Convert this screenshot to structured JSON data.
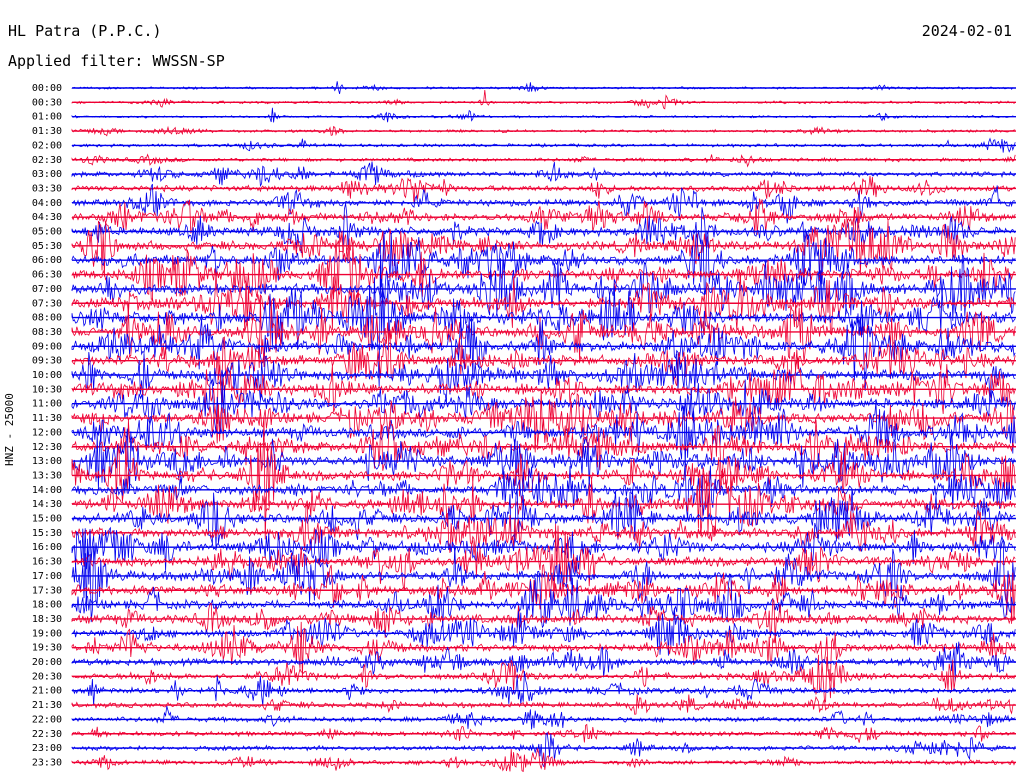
{
  "header": {
    "station": "HL Patra (P.P.C.)",
    "filter": "Applied filter: WWSSN-SP",
    "date": "2024-02-01"
  },
  "chart_data": {
    "type": "line",
    "ylabel": "HNZ - 25000",
    "row_labels": [
      "00:00",
      "00:30",
      "01:00",
      "01:30",
      "02:00",
      "02:30",
      "03:00",
      "03:30",
      "04:00",
      "04:30",
      "05:00",
      "05:30",
      "06:00",
      "06:30",
      "07:00",
      "07:30",
      "08:00",
      "08:30",
      "09:00",
      "09:30",
      "10:00",
      "10:30",
      "11:00",
      "11:30",
      "12:00",
      "12:30",
      "13:00",
      "13:30",
      "14:00",
      "14:30",
      "15:00",
      "15:30",
      "16:00",
      "16:30",
      "17:00",
      "17:30",
      "18:00",
      "18:30",
      "19:00",
      "19:30",
      "20:00",
      "20:30",
      "21:00",
      "21:30",
      "22:00",
      "22:30",
      "23:00",
      "23:30"
    ],
    "trace_colors": [
      "#0000ee",
      "#ee0033"
    ],
    "row_activity": [
      0.4,
      0.5,
      0.4,
      0.6,
      0.8,
      1.0,
      1.6,
      2.0,
      2.3,
      2.6,
      3.2,
      3.6,
      3.8,
      4.0,
      4.1,
      4.2,
      4.3,
      4.2,
      4.1,
      4.0,
      4.0,
      4.1,
      4.0,
      4.0,
      3.9,
      4.0,
      4.0,
      3.9,
      3.8,
      3.8,
      3.8,
      3.7,
      3.6,
      3.6,
      3.6,
      3.5,
      3.4,
      3.2,
      3.0,
      2.8,
      2.4,
      2.2,
      2.0,
      1.8,
      1.6,
      1.5,
      1.4,
      1.4
    ]
  }
}
